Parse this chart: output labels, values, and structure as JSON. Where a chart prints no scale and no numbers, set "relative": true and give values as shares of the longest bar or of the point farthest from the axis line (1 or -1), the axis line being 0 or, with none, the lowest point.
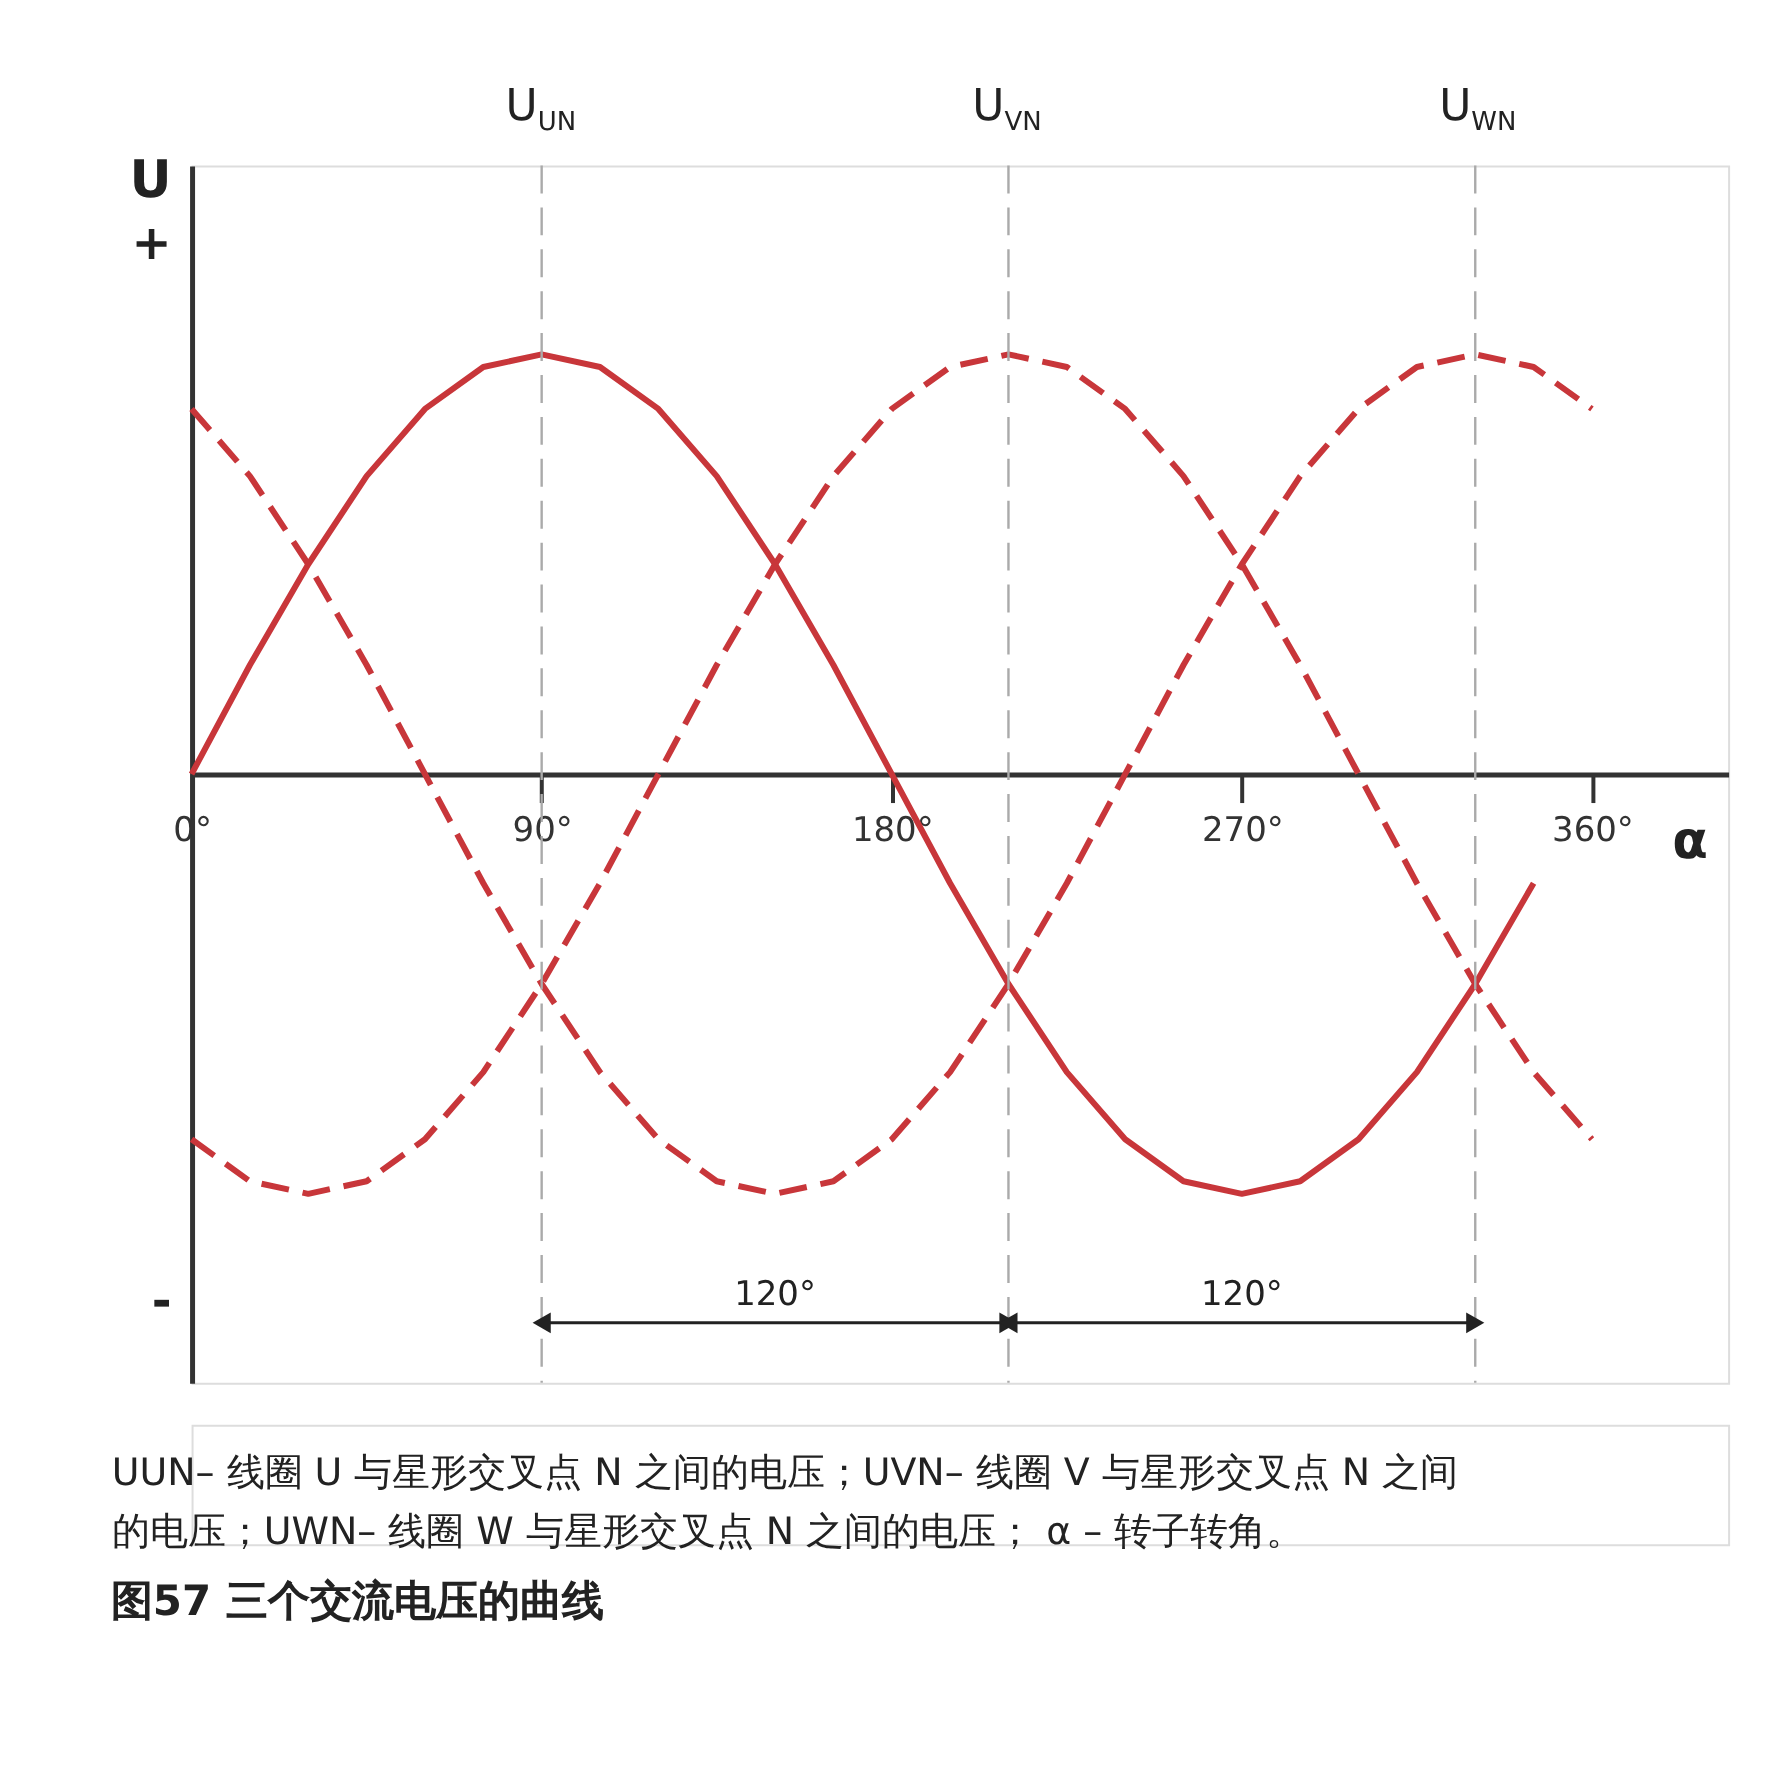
{
  "chart_data": {
    "type": "line",
    "title": "图57  三个交流电压的曲线",
    "xlabel": "α",
    "ylabel": "U",
    "relative": true,
    "grid": false,
    "marker": "none",
    "xlim": [
      0,
      395
    ],
    "xticks": [
      {
        "value": 0,
        "label": "0°"
      },
      {
        "value": 90,
        "label": "90°"
      },
      {
        "value": 180,
        "label": "180°"
      },
      {
        "value": 270,
        "label": "270°"
      },
      {
        "value": 360,
        "label": "360°"
      }
    ],
    "series": [
      {
        "color": "#c8363a",
        "line_style": "solid",
        "x": [
          0,
          15,
          30,
          45,
          60,
          75,
          90,
          105,
          120,
          135,
          150,
          165,
          180,
          195,
          210,
          225,
          240,
          255,
          270,
          285,
          300,
          315,
          330,
          345
        ],
        "values": [
          0,
          0.26,
          0.5,
          0.71,
          0.87,
          0.97,
          1,
          0.97,
          0.87,
          0.71,
          0.5,
          0.26,
          0,
          -0.26,
          -0.5,
          -0.71,
          -0.87,
          -0.97,
          -1,
          -0.97,
          -0.87,
          -0.71,
          -0.5,
          -0.26
        ]
      },
      {
        "color": "#c8363a",
        "line_style": "dashed",
        "x": [
          0,
          15,
          30,
          45,
          60,
          75,
          90,
          105,
          120,
          135,
          150,
          165,
          180,
          195,
          210,
          225,
          240,
          255,
          270,
          285,
          300,
          315,
          330,
          345,
          360
        ],
        "values": [
          -0.87,
          -0.97,
          -1,
          -0.97,
          -0.87,
          -0.71,
          -0.5,
          -0.26,
          0,
          0.26,
          0.5,
          0.71,
          0.87,
          0.97,
          1,
          0.97,
          0.87,
          0.71,
          0.5,
          0.26,
          0,
          -0.26,
          -0.5,
          -0.71,
          -0.87
        ]
      },
      {
        "color": "#c8363a",
        "line_style": "dashed",
        "x": [
          0,
          15,
          30,
          45,
          60,
          75,
          90,
          105,
          120,
          135,
          150,
          165,
          180,
          195,
          210,
          225,
          240,
          255,
          270,
          285,
          300,
          315,
          330,
          345,
          360
        ],
        "values": [
          0.87,
          0.71,
          0.5,
          0.26,
          0,
          -0.26,
          -0.5,
          -0.71,
          -0.87,
          -0.97,
          -1,
          -0.97,
          -0.87,
          -0.71,
          -0.5,
          -0.26,
          0,
          0.26,
          0.5,
          0.71,
          0.87,
          0.97,
          1,
          0.97,
          0.87
        ]
      }
    ],
    "ref_lines": [
      {
        "axis": "x",
        "value": 90,
        "label": "U$_{UN}$",
        "color": "#aaaaaa",
        "line_style": "dashed"
      },
      {
        "axis": "x",
        "value": 210,
        "label": "U$_{VN}$",
        "color": "#aaaaaa",
        "line_style": "dashed"
      },
      {
        "axis": "x",
        "value": 330,
        "label": "U$_{WN}$",
        "color": "#aaaaaa",
        "line_style": "dashed"
      }
    ],
    "annotations": [
      "UUN– 线圈 U 与星形交叉点 N 之间的电压；UVN– 线圈 V 与星形交叉点 N 之间的电压；UWN– 线圈 W 与星形交叉点 N 之间的电压； α – 转子转角。",
      "+",
      "-",
      "120°",
      "120°"
    ]
  }
}
